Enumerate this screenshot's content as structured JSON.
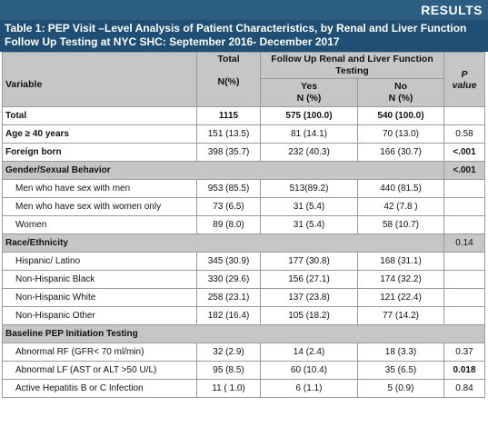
{
  "header": {
    "results_label": "RESULTS"
  },
  "title": {
    "line1": "Table 1: PEP Visit –Level Analysis of Patient Characteristics, by  Renal and Liver Function",
    "line2": "Follow Up Testing at NYC SHC: September 2016- December 2017"
  },
  "columns": {
    "variable": "Variable",
    "total": "Total",
    "total_sub": "N(%)",
    "followup": "Follow Up Renal and Liver Function Testing",
    "yes": "Yes",
    "yes_sub": "N (%)",
    "no": "No",
    "no_sub": "N (%)",
    "p": "P",
    "p_sub": "value"
  },
  "rows": {
    "total": {
      "label": "Total",
      "total": "1115",
      "yes": "575 (100.0)",
      "no": "540 (100.0)",
      "p": ""
    },
    "age": {
      "label": "Age ≥ 40 years",
      "total": "151 (13.5)",
      "yes": "81 (14.1)",
      "no": "70 (13.0)",
      "p": "0.58"
    },
    "foreign": {
      "label": "Foreign born",
      "total": "398 (35.7)",
      "yes": "232 (40.3)",
      "no": "166 (30.7)",
      "p": "<.001"
    },
    "gender_header": {
      "label": "Gender/Sexual Behavior",
      "p": "<.001"
    },
    "msm": {
      "label": "Men who have sex with men",
      "total": "953 (85.5)",
      "yes": "513(89.2)",
      "no": "440 (81.5)",
      "p": ""
    },
    "msw": {
      "label": "Men who have sex with women only",
      "total": "73 (6.5)",
      "yes": "31 (5.4)",
      "no": "42 (7.8 )",
      "p": ""
    },
    "women": {
      "label": "Women",
      "total": "89 (8.0)",
      "yes": "31 (5.4)",
      "no": "58 (10.7)",
      "p": ""
    },
    "race_header": {
      "label": "Race/Ethnicity",
      "p": "0.14"
    },
    "hispanic": {
      "label": "Hispanic/ Latino",
      "total": "345 (30.9)",
      "yes": "177 (30.8)",
      "no": "168 (31.1)",
      "p": ""
    },
    "black": {
      "label": "Non-Hispanic Black",
      "total": "330 (29.6)",
      "yes": "156 (27.1)",
      "no": "174 (32.2)",
      "p": ""
    },
    "white": {
      "label": "Non-Hispanic White",
      "total": "258 (23.1)",
      "yes": "137 (23.8)",
      "no": "121 (22.4)",
      "p": ""
    },
    "other": {
      "label": "Non-Hispanic Other",
      "total": "182 (16.4)",
      "yes": "105 (18.2)",
      "no": "77 (14.2)",
      "p": ""
    },
    "baseline_header": {
      "label": "Baseline PEP Initiation Testing"
    },
    "rf": {
      "label": "Abnormal RF (GFR< 70 ml/min)",
      "total": "32 (2.9)",
      "yes": "14 (2.4)",
      "no": "18 (3.3)",
      "p": "0.37"
    },
    "lf": {
      "label": "Abnormal LF (AST or ALT >50 U/L)",
      "total": "95 (8.5)",
      "yes": "60 (10.4)",
      "no": "35 (6.5)",
      "p": "0.018"
    },
    "hep": {
      "label": "Active Hepatitis B or C Infection",
      "total": "11 ( 1.0)",
      "yes": "6 (1.1)",
      "no": "5 (0.9)",
      "p": "0.84"
    }
  }
}
